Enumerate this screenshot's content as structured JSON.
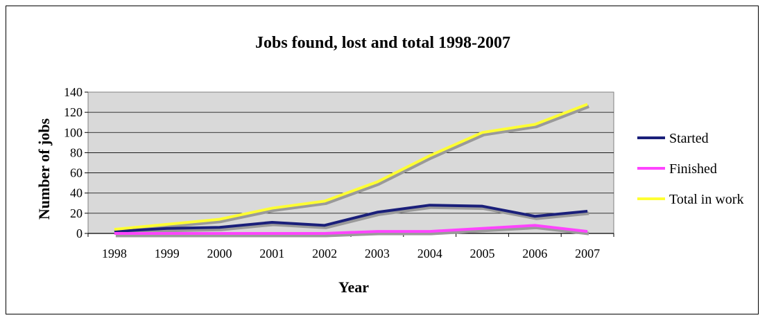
{
  "chart_data": {
    "type": "line",
    "title": "Jobs found, lost and total 1998-2007",
    "xlabel": "Year",
    "ylabel": "Number of jobs",
    "categories": [
      "1998",
      "1999",
      "2000",
      "2001",
      "2002",
      "2003",
      "2004",
      "2005",
      "2006",
      "2007"
    ],
    "ylim": [
      0,
      140
    ],
    "yticks": [
      0,
      20,
      40,
      60,
      80,
      100,
      120,
      140
    ],
    "grid": true,
    "legend_position": "right",
    "plot_background": "#d9d9d9",
    "series": [
      {
        "name": "Started",
        "color": "#1a1f7a",
        "values": [
          2,
          5,
          6,
          11,
          8,
          21,
          28,
          27,
          17,
          22
        ]
      },
      {
        "name": "Finished",
        "color": "#ff44ff",
        "values": [
          0,
          0,
          0,
          0,
          0,
          2,
          2,
          5,
          8,
          2
        ]
      },
      {
        "name": "Total in work",
        "color": "#ffff33",
        "values": [
          4,
          9,
          14,
          25,
          32,
          51,
          77,
          100,
          108,
          128
        ]
      }
    ]
  }
}
